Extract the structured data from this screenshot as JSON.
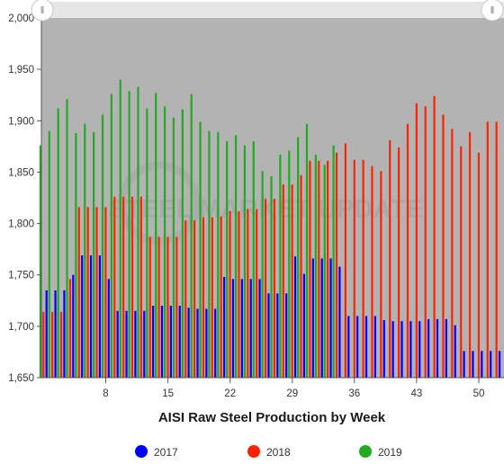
{
  "chart_data": {
    "type": "bar",
    "title": "AISI Raw Steel Production by Week",
    "xlabel": "",
    "ylabel": "",
    "ylim": [
      1650,
      2000
    ],
    "y_ticks": [
      "1,650",
      "1,700",
      "1,750",
      "1,800",
      "1,850",
      "1,900",
      "1,950",
      "2,000"
    ],
    "y_tick_values": [
      1650,
      1700,
      1750,
      1800,
      1850,
      1900,
      1950,
      2000
    ],
    "x_ticks": [
      "8",
      "15",
      "22",
      "29",
      "36",
      "43",
      "50"
    ],
    "x_tick_values": [
      8,
      15,
      22,
      29,
      36,
      43,
      50
    ],
    "weeks": [
      1,
      2,
      3,
      4,
      5,
      6,
      7,
      8,
      9,
      10,
      11,
      12,
      13,
      14,
      15,
      16,
      17,
      18,
      19,
      20,
      21,
      22,
      23,
      24,
      25,
      26,
      27,
      28,
      29,
      30,
      31,
      32,
      33,
      34,
      35,
      36,
      37,
      38,
      39,
      40,
      41,
      42,
      43,
      44,
      45,
      46,
      47,
      48,
      49,
      50,
      51,
      52
    ],
    "legend_position": "bottom",
    "grid": false,
    "plot_background": "#b3b3b3",
    "watermark": "STEEL MARKET UPDATE",
    "series": [
      {
        "name": "2017",
        "color": "#0000ff",
        "values": [
          1735,
          1735,
          1735,
          1750,
          1769,
          1769,
          1769,
          1746,
          1715,
          1715,
          1715,
          1715,
          1720,
          1720,
          1720,
          1720,
          1718,
          1717,
          1717,
          1717,
          1748,
          1746,
          1746,
          1746,
          1746,
          1732,
          1732,
          1732,
          1768,
          1751,
          1766,
          1766,
          1766,
          1758,
          1710,
          1710,
          1710,
          1710,
          1706,
          1705,
          1705,
          1705,
          1705,
          1707,
          1707,
          1707,
          1701,
          1676,
          1676,
          1676,
          1676,
          1676
        ]
      },
      {
        "name": "2018",
        "color": "#ff2200",
        "values": [
          1714,
          1714,
          1714,
          1746,
          1816,
          1816,
          1816,
          1816,
          1826,
          1826,
          1826,
          1826,
          1787,
          1787,
          1787,
          1787,
          1803,
          1803,
          1806,
          1806,
          1807,
          1812,
          1812,
          1814,
          1814,
          1824,
          1824,
          1838,
          1838,
          1847,
          1861,
          1861,
          1861,
          1869,
          1878,
          1862,
          1862,
          1856,
          1851,
          1881,
          1874,
          1897,
          1917,
          1914,
          1924,
          1906,
          1892,
          1875,
          1889,
          1869,
          1899,
          1899
        ]
      },
      {
        "name": "2019",
        "color": "#22aa22",
        "values": [
          1876,
          1890,
          1912,
          1921,
          1888,
          1897,
          1889,
          1906,
          1926,
          1940,
          1929,
          1933,
          1912,
          1927,
          1914,
          1903,
          1911,
          1926,
          1899,
          1890,
          1889,
          1880,
          1886,
          1876,
          1880,
          1851,
          1846,
          1867,
          1871,
          1884,
          1897,
          1867,
          1857,
          1876
        ]
      }
    ]
  },
  "scrollbar": {
    "left_handle_glyph": "‖",
    "right_handle_glyph": "‖"
  }
}
